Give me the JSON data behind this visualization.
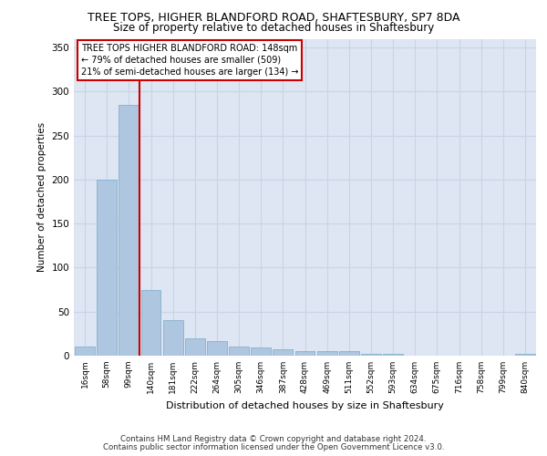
{
  "title_line1": "TREE TOPS, HIGHER BLANDFORD ROAD, SHAFTESBURY, SP7 8DA",
  "title_line2": "Size of property relative to detached houses in Shaftesbury",
  "xlabel": "Distribution of detached houses by size in Shaftesbury",
  "ylabel": "Number of detached properties",
  "bin_labels": [
    "16sqm",
    "58sqm",
    "99sqm",
    "140sqm",
    "181sqm",
    "222sqm",
    "264sqm",
    "305sqm",
    "346sqm",
    "387sqm",
    "428sqm",
    "469sqm",
    "511sqm",
    "552sqm",
    "593sqm",
    "634sqm",
    "675sqm",
    "716sqm",
    "758sqm",
    "799sqm",
    "840sqm"
  ],
  "bar_values": [
    10,
    200,
    285,
    75,
    40,
    20,
    17,
    10,
    9,
    7,
    5,
    5,
    5,
    2,
    2,
    0,
    0,
    0,
    0,
    0,
    2
  ],
  "bar_color": "#aec6df",
  "bar_edge_color": "#7aaac8",
  "subject_line_color": "#cc0000",
  "annotation_text": "TREE TOPS HIGHER BLANDFORD ROAD: 148sqm\n← 79% of detached houses are smaller (509)\n21% of semi-detached houses are larger (134) →",
  "annotation_box_color": "#ffffff",
  "annotation_box_edge": "#cc0000",
  "ylim": [
    0,
    360
  ],
  "yticks": [
    0,
    50,
    100,
    150,
    200,
    250,
    300,
    350
  ],
  "grid_color": "#c8d4e8",
  "bg_color": "#dde6f2",
  "footer_line1": "Contains HM Land Registry data © Crown copyright and database right 2024.",
  "footer_line2": "Contains public sector information licensed under the Open Government Licence v3.0."
}
